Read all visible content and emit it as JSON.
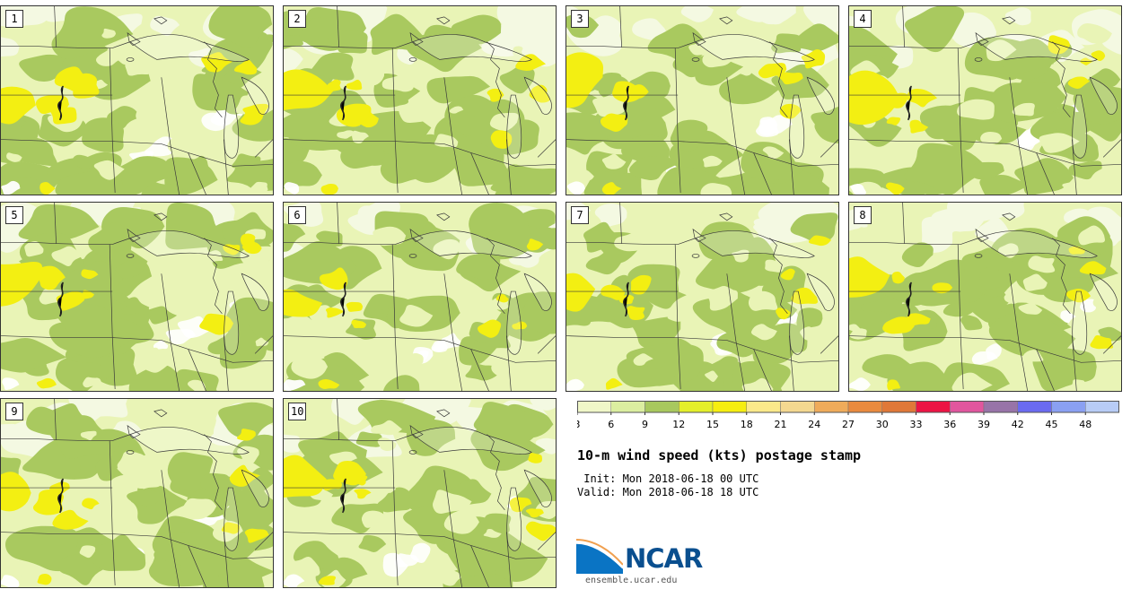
{
  "panels": [
    {
      "label": "1"
    },
    {
      "label": "2"
    },
    {
      "label": "3"
    },
    {
      "label": "4"
    },
    {
      "label": "5"
    },
    {
      "label": "6"
    },
    {
      "label": "7"
    },
    {
      "label": "8"
    },
    {
      "label": "9"
    },
    {
      "label": "10"
    }
  ],
  "colorbar": {
    "ticks": [
      "3",
      "6",
      "9",
      "12",
      "15",
      "18",
      "21",
      "24",
      "27",
      "30",
      "33",
      "36",
      "39",
      "42",
      "45",
      "48"
    ],
    "colors": [
      "#f0f7c8",
      "#dbeea0",
      "#a8c85e",
      "#e4ef2a",
      "#f6ee10",
      "#fbe98a",
      "#f4d890",
      "#efab5a",
      "#e98a3e",
      "#e07838",
      "#ec1444",
      "#e1569e",
      "#9874a8",
      "#6a6af0",
      "#8aa0f2",
      "#b8ccf6"
    ]
  },
  "title": "10-m wind speed (kts) postage stamp",
  "init": " Init: Mon 2018-06-18 00 UTC",
  "valid": "Valid: Mon 2018-06-18 18 UTC",
  "logo": {
    "word": "NCAR",
    "url": "ensemble.ucar.edu"
  },
  "map_colors": {
    "light": "#e9f4b6",
    "lighter": "#f4f9e2",
    "medium": "#a9c95f",
    "yellow": "#f3ef12",
    "white": "#ffffff",
    "lines": "#3a3a3a"
  }
}
